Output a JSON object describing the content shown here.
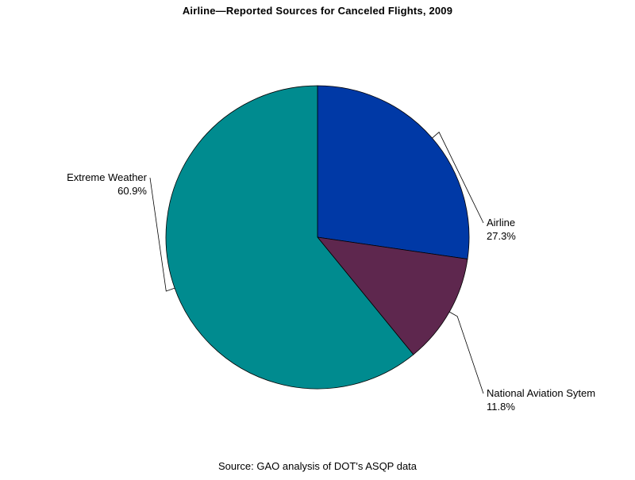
{
  "chart_data": {
    "type": "pie",
    "title": "Airline—Reported Sources for Canceled Flights, 2009",
    "footnote": "Source: GAO analysis of DOT's ASQP data",
    "slices": [
      {
        "label": "Airline",
        "value": 27.3,
        "value_label": "27.3%",
        "color": "#0039a6"
      },
      {
        "label": "National Aviation Sytem",
        "value": 11.8,
        "value_label": "11.8%",
        "color": "#5e274e"
      },
      {
        "label": "Extreme Weather",
        "value": 60.9,
        "value_label": "60.9%",
        "color": "#008b8f"
      }
    ],
    "start_angle_deg": 90,
    "direction": "clockwise",
    "legend": "none"
  }
}
